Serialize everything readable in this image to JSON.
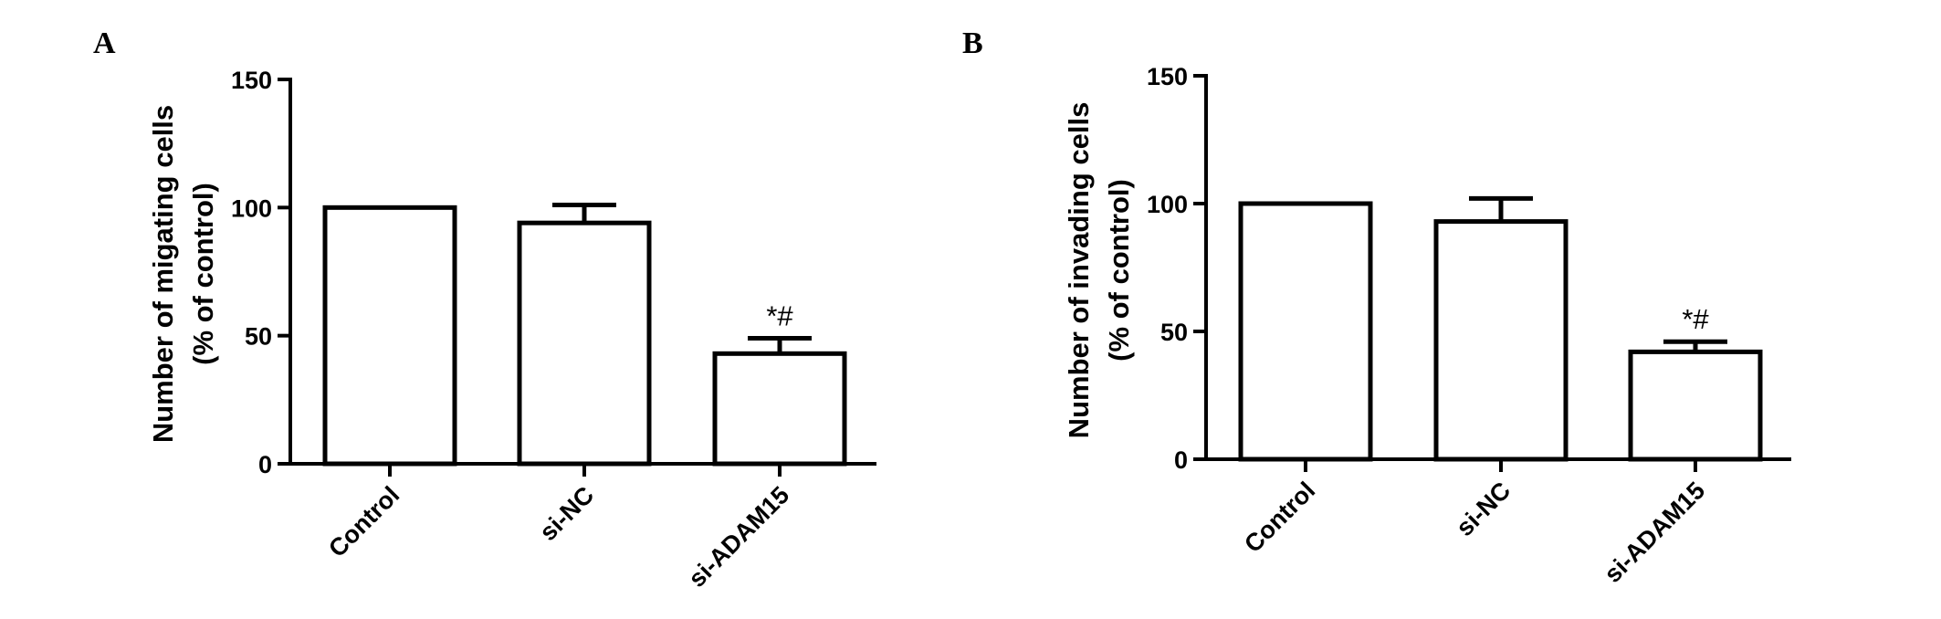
{
  "chart_data": [
    {
      "type": "bar",
      "panel": "A",
      "categories": [
        "Control",
        "si-NC",
        "si-ADAM15"
      ],
      "values": [
        100,
        94,
        43
      ],
      "errors": [
        0,
        7,
        6
      ],
      "annotations": [
        "",
        "",
        "*#"
      ],
      "ylabel_line1": "Number of migating cells",
      "ylabel_line2": "(% of control)",
      "xlabel": "",
      "ylim": [
        0,
        150
      ],
      "yticks": [
        0,
        50,
        100,
        150
      ],
      "grid": false
    },
    {
      "type": "bar",
      "panel": "B",
      "categories": [
        "Control",
        "si-NC",
        "si-ADAM15"
      ],
      "values": [
        100,
        93,
        42
      ],
      "errors": [
        0,
        9,
        4
      ],
      "annotations": [
        "",
        "",
        "*#"
      ],
      "ylabel_line1": "Number of invading cells",
      "ylabel_line2": "(% of control)",
      "xlabel": "",
      "ylim": [
        0,
        150
      ],
      "yticks": [
        0,
        50,
        100,
        150
      ],
      "grid": false
    }
  ]
}
